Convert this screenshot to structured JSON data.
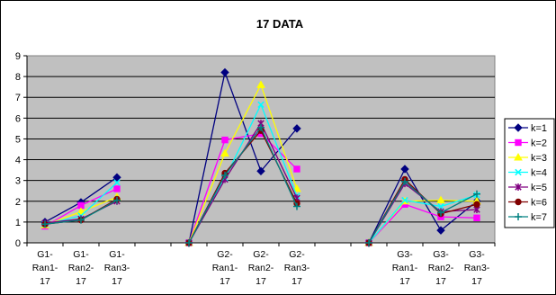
{
  "chart_data": {
    "type": "line",
    "title": "17 DATA",
    "xlabel": "",
    "ylabel": "",
    "ylim": [
      0,
      9
    ],
    "yticks": [
      0,
      1,
      2,
      3,
      4,
      5,
      6,
      7,
      8,
      9
    ],
    "grid": true,
    "legend_position": "right",
    "categories": [
      [
        "G1-",
        "Ran1-",
        "17"
      ],
      [
        "G1-",
        "Ran2-",
        "17"
      ],
      [
        "G1-",
        "Ran3-",
        "17"
      ],
      [
        "",
        "",
        ""
      ],
      [
        "",
        "",
        ""
      ],
      [
        "G2-",
        "Ran1-",
        "17"
      ],
      [
        "G2-",
        "Ran2-",
        "17"
      ],
      [
        "G2-",
        "Ran3-",
        "17"
      ],
      [
        "",
        "",
        ""
      ],
      [
        "",
        "",
        ""
      ],
      [
        "G3-",
        "Ran1-",
        "17"
      ],
      [
        "G3-",
        "Ran2-",
        "17"
      ],
      [
        "G3-",
        "Ran3-",
        "17"
      ]
    ],
    "series": [
      {
        "name": "k=1",
        "color": "#000080",
        "marker": "diamond",
        "values": [
          1.0,
          1.95,
          3.15,
          null,
          0,
          8.2,
          3.45,
          5.5,
          null,
          0,
          3.55,
          0.6,
          2.0
        ]
      },
      {
        "name": "k=2",
        "color": "#FF00FF",
        "marker": "square",
        "values": [
          0.8,
          1.8,
          2.6,
          null,
          0,
          4.95,
          5.25,
          3.55,
          null,
          0,
          1.85,
          1.25,
          1.2
        ]
      },
      {
        "name": "k=3",
        "color": "#FFFF00",
        "marker": "triangle",
        "values": [
          0.85,
          1.5,
          2.2,
          null,
          0,
          4.3,
          7.6,
          2.6,
          null,
          0,
          2.0,
          2.05,
          2.0
        ]
      },
      {
        "name": "k=4",
        "color": "#00FFFF",
        "marker": "x",
        "values": [
          0.9,
          1.3,
          2.9,
          null,
          0,
          3.1,
          6.65,
          2.25,
          null,
          0,
          2.05,
          1.75,
          2.3
        ]
      },
      {
        "name": "k=5",
        "color": "#800080",
        "marker": "star",
        "values": [
          0.95,
          1.15,
          2.0,
          null,
          0,
          3.05,
          5.75,
          2.15,
          null,
          0,
          2.85,
          1.5,
          1.6
        ]
      },
      {
        "name": "k=6",
        "color": "#800000",
        "marker": "circle",
        "values": [
          0.9,
          1.1,
          2.1,
          null,
          0,
          3.35,
          5.4,
          1.9,
          null,
          0,
          3.05,
          1.4,
          1.85
        ]
      },
      {
        "name": "k=7",
        "color": "#008080",
        "marker": "plus",
        "values": [
          0.9,
          1.1,
          2.05,
          null,
          0,
          3.25,
          5.55,
          1.75,
          null,
          0,
          2.95,
          1.45,
          2.35
        ]
      }
    ]
  }
}
